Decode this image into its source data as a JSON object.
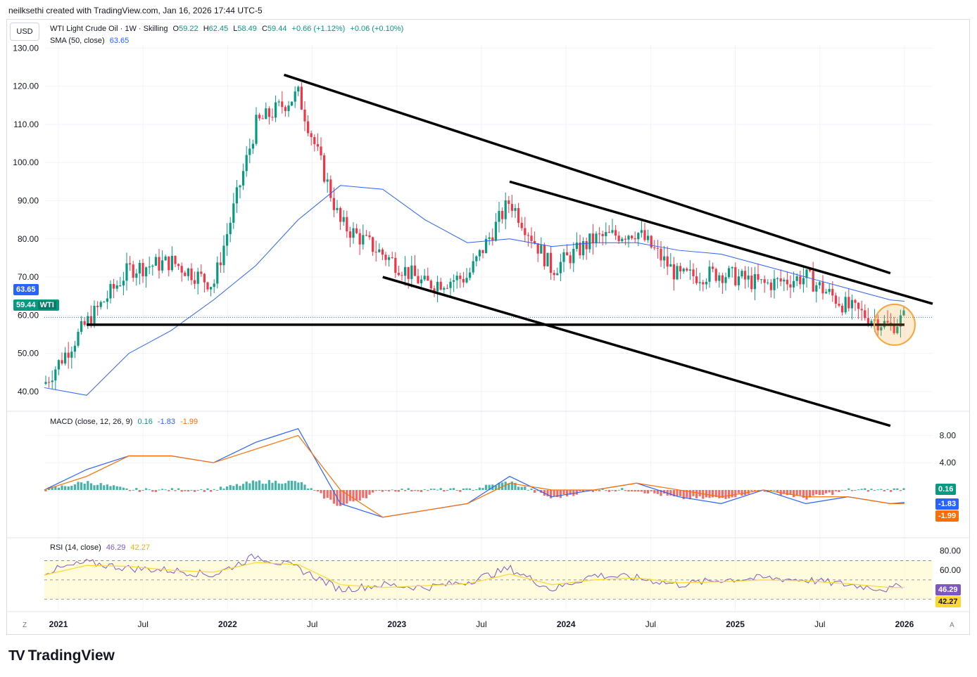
{
  "header": {
    "credit": "neilksethi created with TradingView.com, Jan 16, 2026 17:44 UTC-5"
  },
  "currency": "USD",
  "symbol": {
    "name": "WTI Light Crude Oil · 1W · Skilling",
    "open_label": "O",
    "open": "59.22",
    "high_label": "H",
    "high": "62.45",
    "low_label": "L",
    "low": "58.49",
    "close_label": "C",
    "close": "59.44",
    "change": "+0.66 (+1.12%)",
    "change2": "+0.06 (+0.10%)"
  },
  "sma": {
    "label": "SMA (50, close)",
    "value": "63.65"
  },
  "macd": {
    "label": "MACD (close, 12, 26, 9)",
    "hist": "0.16",
    "macd": "-1.83",
    "signal": "-1.99"
  },
  "rsi": {
    "label": "RSI (14, close)",
    "rsi": "46.29",
    "ma": "42.27"
  },
  "price_tags": {
    "sma": "63.65",
    "last": "59.44",
    "last_symbol": "WTI"
  },
  "corners": {
    "left": "Z",
    "right": "A"
  },
  "brand": "TradingView",
  "colors": {
    "up": "#089981",
    "down": "#f23645",
    "sma": "#2962ff",
    "macd": "#2962ff",
    "signal": "#ff6d00",
    "rsi": "#7e57c2",
    "rsi_ma": "#fdd835",
    "highlight": "#f7a53b"
  },
  "chart_data": [
    {
      "type": "line",
      "title": "",
      "x_tick_labels": [
        "2021",
        "Jul",
        "2022",
        "Jul",
        "2023",
        "Jul",
        "2024",
        "Jul",
        "2025",
        "Jul",
        "2026"
      ],
      "y_tick_labels": [
        "130.00",
        "120.00",
        "110.00",
        "100.00",
        "90.00",
        "80.00",
        "70.00",
        "60.00",
        "50.00",
        "40.00"
      ],
      "ylim": [
        35,
        131
      ],
      "series": [
        {
          "name": "WTI",
          "values_comment": "",
          "x": [
            "2020-12",
            "2021-03",
            "2021-06",
            "2021-09",
            "2021-12",
            "2022-03",
            "2022-06",
            "2022-09",
            "2022-12",
            "2023-03",
            "2023-06",
            "2023-09",
            "2023-12",
            "2024-03",
            "2024-06",
            "2024-09",
            "2024-12",
            "2025-03",
            "2025-06",
            "2025-09",
            "2025-12",
            "2026-01"
          ],
          "values": [
            42,
            58,
            72,
            74,
            68,
            110,
            118,
            84,
            76,
            68,
            70,
            90,
            72,
            80,
            82,
            70,
            71,
            68,
            70,
            62,
            57,
            59.44
          ]
        },
        {
          "name": "SMA (50, close)",
          "x": [
            "2020-12",
            "2021-03",
            "2021-06",
            "2021-09",
            "2021-12",
            "2022-03",
            "2022-06",
            "2022-09",
            "2022-12",
            "2023-03",
            "2023-06",
            "2023-09",
            "2023-12",
            "2024-03",
            "2024-06",
            "2024-09",
            "2024-12",
            "2025-03",
            "2025-06",
            "2025-09",
            "2025-12",
            "2026-01"
          ],
          "values": [
            41,
            39,
            50,
            56,
            64,
            73,
            85,
            94,
            93,
            85,
            79,
            80,
            78,
            79,
            79,
            77,
            76,
            73,
            70,
            67,
            64,
            63.65
          ]
        }
      ],
      "trendlines": [
        {
          "from": [
            "2022-05",
            123
          ],
          "to": [
            "2025-12",
            71
          ]
        },
        {
          "from": [
            "2023-09",
            95
          ],
          "to": [
            "2026-03",
            63
          ]
        },
        {
          "from": [
            "2022-12",
            70
          ],
          "to": [
            "2025-12",
            31
          ]
        },
        {
          "from": [
            "2021-03",
            57.5
          ],
          "to": [
            "2026-01",
            57.5
          ]
        }
      ]
    },
    {
      "type": "line",
      "title": "",
      "y_tick_labels": [
        "8.00",
        "4.00"
      ],
      "series": [
        {
          "name": "MACD",
          "values": [
            0,
            3,
            5,
            5,
            4,
            7,
            9,
            -2,
            -4,
            -3,
            -2,
            2,
            -1,
            0,
            1,
            -1,
            -2,
            0,
            -2,
            -1,
            -2,
            -1.83
          ]
        },
        {
          "name": "Signal",
          "values": [
            0,
            2,
            5,
            5,
            4,
            6,
            8,
            0,
            -4,
            -3,
            -2,
            1,
            0,
            0,
            1,
            0,
            -1,
            0,
            -1,
            -1,
            -2,
            -1.99
          ]
        }
      ]
    },
    {
      "type": "line",
      "title": "",
      "y_tick_labels": [
        "80.00",
        "60.00"
      ],
      "series": [
        {
          "name": "RSI",
          "values": [
            58,
            68,
            62,
            60,
            55,
            75,
            62,
            40,
            45,
            42,
            48,
            62,
            40,
            55,
            52,
            45,
            50,
            52,
            50,
            45,
            40,
            46.29
          ]
        },
        {
          "name": "RSI MA",
          "values": [
            55,
            65,
            64,
            60,
            58,
            68,
            66,
            45,
            42,
            44,
            46,
            56,
            45,
            50,
            52,
            47,
            48,
            50,
            49,
            46,
            42,
            42.27
          ]
        }
      ]
    }
  ]
}
